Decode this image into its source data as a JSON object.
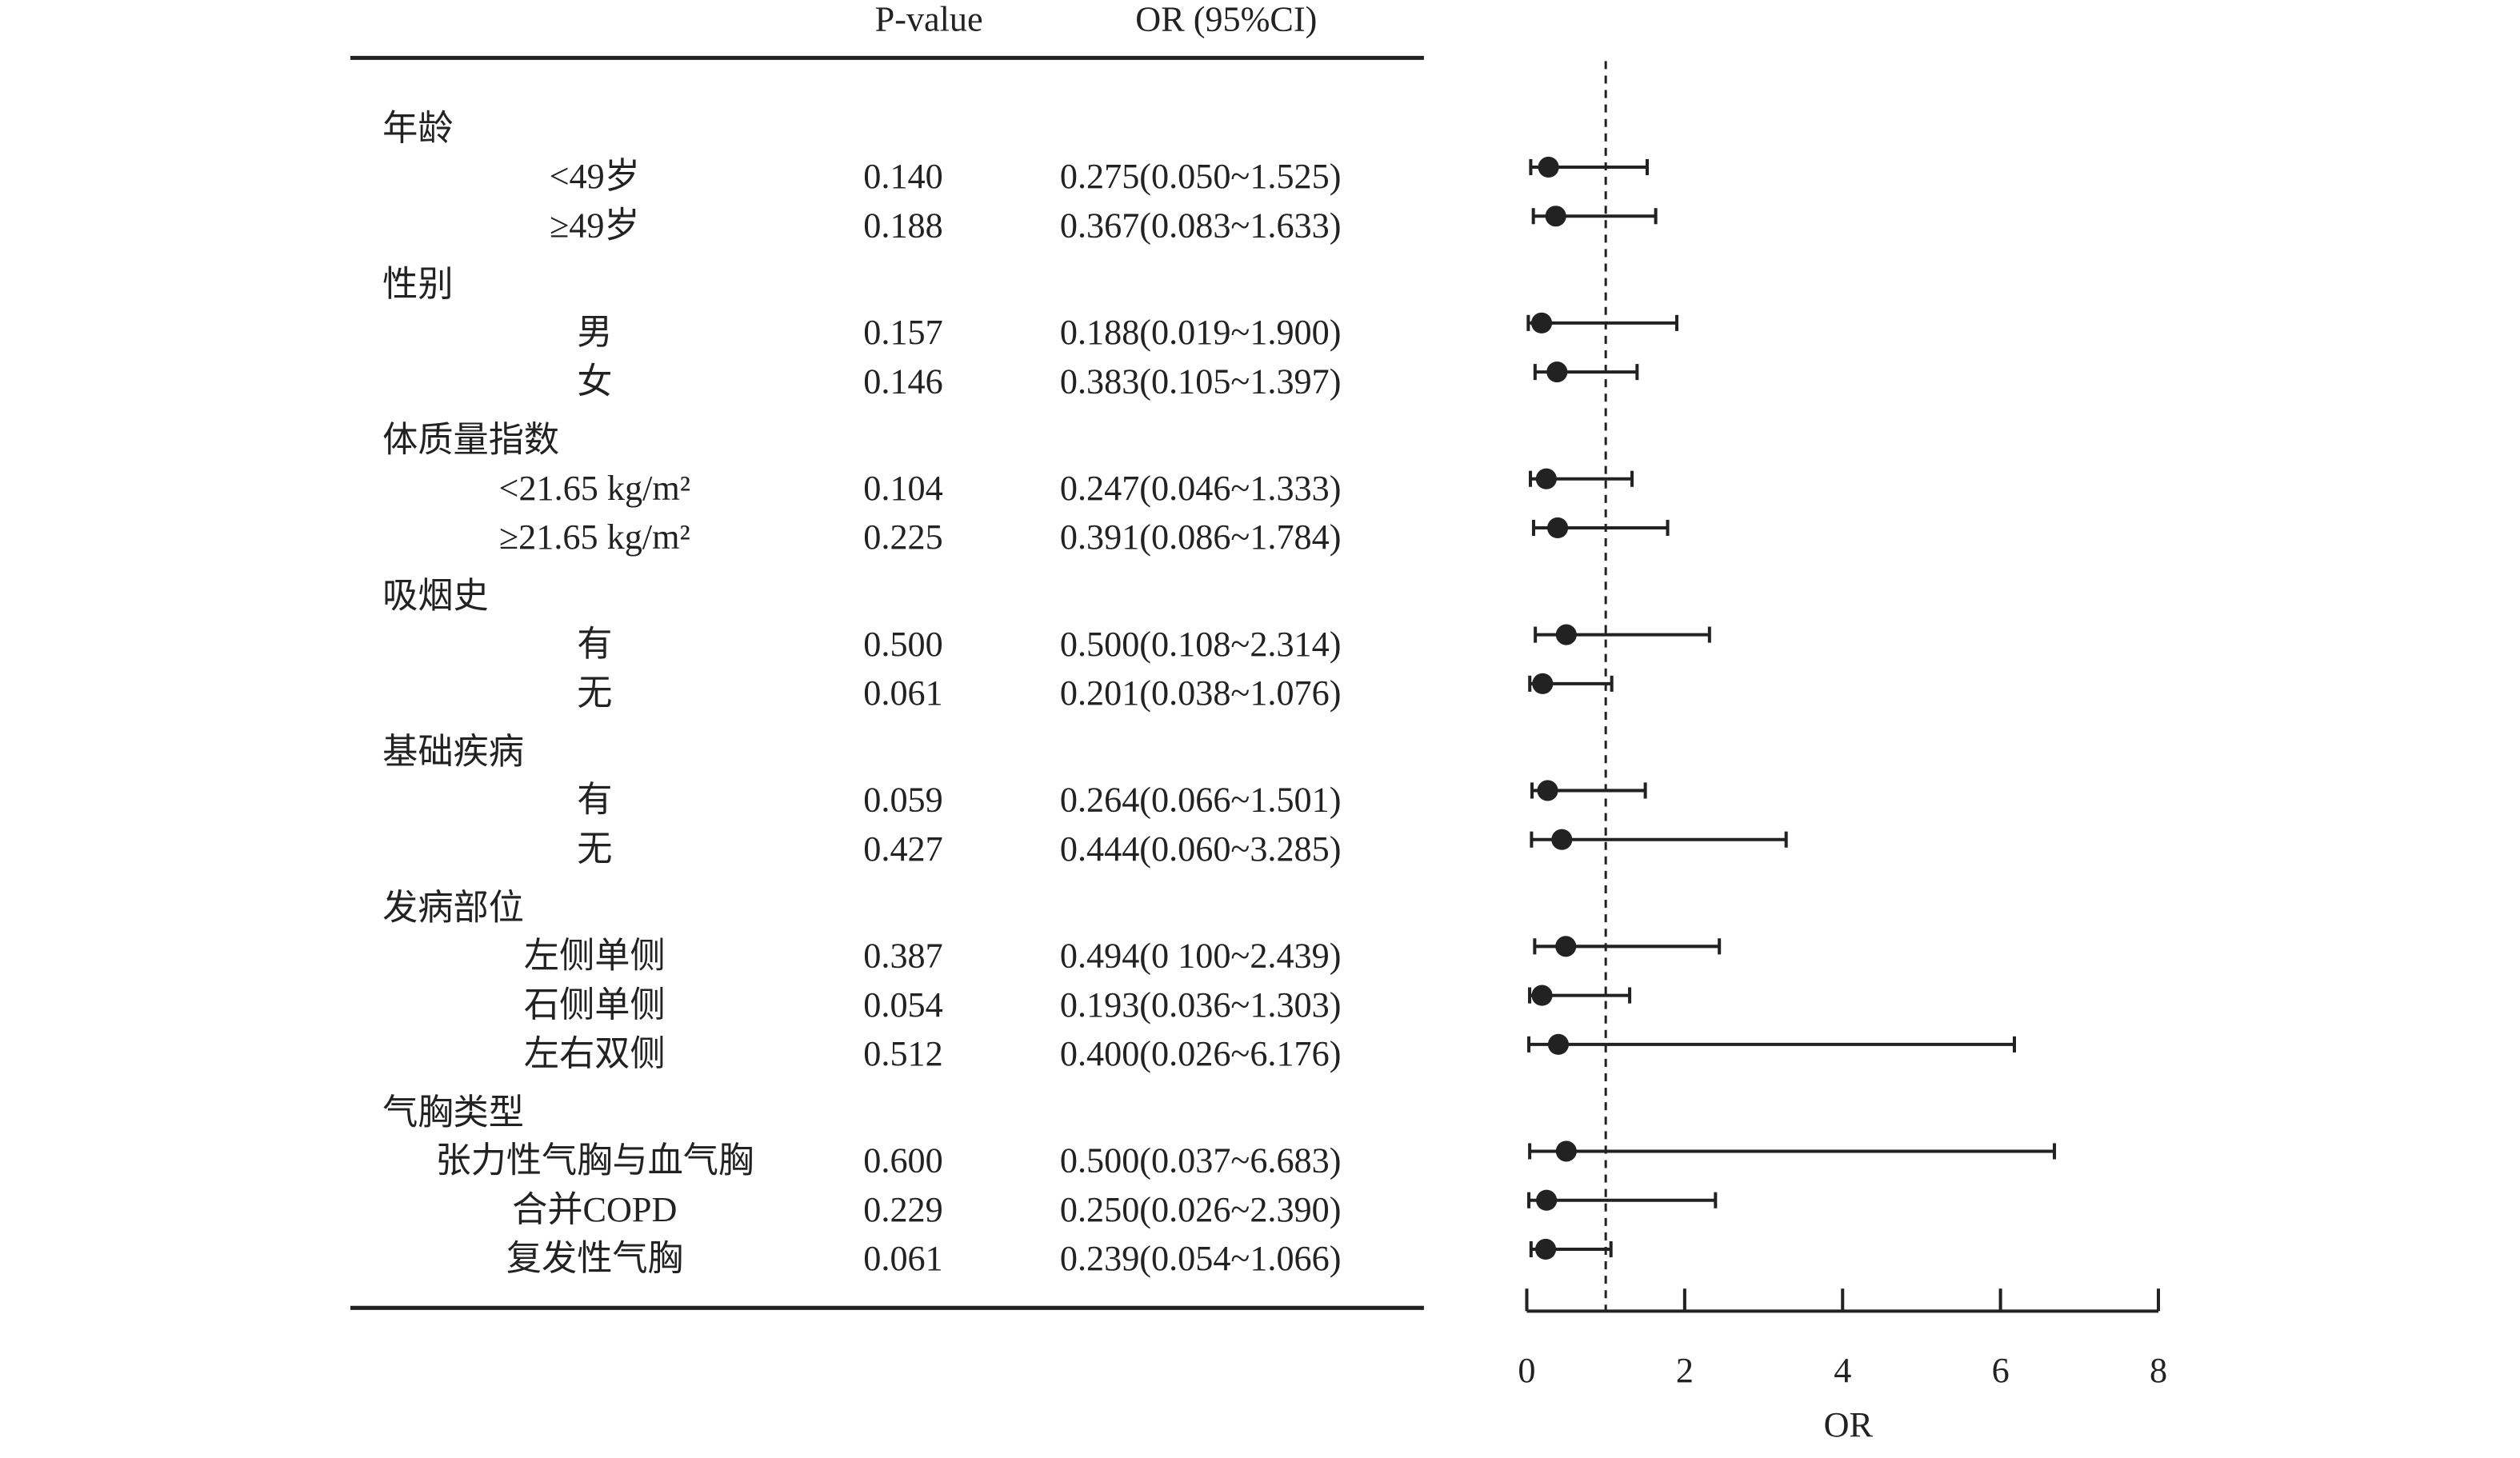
{
  "chart_data": {
    "type": "forest",
    "columns": [
      "P-value",
      "OR (95%CI)"
    ],
    "groups": [
      {
        "label": "年龄",
        "rows": [
          {
            "label": "<49岁",
            "p_value": "0.140",
            "ci_text": "0.275(0.050~1.525)",
            "or": 0.275,
            "lower": 0.05,
            "upper": 1.525
          },
          {
            "label": "≥49岁",
            "p_value": "0.188",
            "ci_text": "0.367(0.083~1.633)",
            "or": 0.367,
            "lower": 0.083,
            "upper": 1.633
          }
        ]
      },
      {
        "label": "性别",
        "rows": [
          {
            "label": "男",
            "p_value": "0.157",
            "ci_text": "0.188(0.019~1.900)",
            "or": 0.188,
            "lower": 0.019,
            "upper": 1.9
          },
          {
            "label": "女",
            "p_value": "0.146",
            "ci_text": "0.383(0.105~1.397)",
            "or": 0.383,
            "lower": 0.105,
            "upper": 1.397
          }
        ]
      },
      {
        "label": "体质量指数",
        "rows": [
          {
            "label": "<21.65 kg/m²",
            "p_value": "0.104",
            "ci_text": "0.247(0.046~1.333)",
            "or": 0.247,
            "lower": 0.046,
            "upper": 1.333
          },
          {
            "label": "≥21.65 kg/m²",
            "p_value": "0.225",
            "ci_text": "0.391(0.086~1.784)",
            "or": 0.391,
            "lower": 0.086,
            "upper": 1.784
          }
        ]
      },
      {
        "label": "吸烟史",
        "rows": [
          {
            "label": "有",
            "p_value": "0.500",
            "ci_text": "0.500(0.108~2.314)",
            "or": 0.5,
            "lower": 0.108,
            "upper": 2.314
          },
          {
            "label": "无",
            "p_value": "0.061",
            "ci_text": "0.201(0.038~1.076)",
            "or": 0.201,
            "lower": 0.038,
            "upper": 1.076
          }
        ]
      },
      {
        "label": "基础疾病",
        "rows": [
          {
            "label": "有",
            "p_value": "0.059",
            "ci_text": "0.264(0.066~1.501)",
            "or": 0.264,
            "lower": 0.066,
            "upper": 1.501
          },
          {
            "label": "无",
            "p_value": "0.427",
            "ci_text": "0.444(0.060~3.285)",
            "or": 0.444,
            "lower": 0.06,
            "upper": 3.285
          }
        ]
      },
      {
        "label": "发病部位",
        "rows": [
          {
            "label": "左侧单侧",
            "p_value": "0.387",
            "ci_text": "0.494(0 100~2.439)",
            "or": 0.494,
            "lower": 0.1,
            "upper": 2.439
          },
          {
            "label": "石侧单侧",
            "p_value": "0.054",
            "ci_text": "0.193(0.036~1.303)",
            "or": 0.193,
            "lower": 0.036,
            "upper": 1.303
          },
          {
            "label": "左右双侧",
            "p_value": "0.512",
            "ci_text": "0.400(0.026~6.176)",
            "or": 0.4,
            "lower": 0.026,
            "upper": 6.176
          }
        ]
      },
      {
        "label": "气胸类型",
        "rows": [
          {
            "label": "张力性气胸与血气胸",
            "p_value": "0.600",
            "ci_text": "0.500(0.037~6.683)",
            "or": 0.5,
            "lower": 0.037,
            "upper": 6.683
          },
          {
            "label": "合并COPD",
            "p_value": "0.229",
            "ci_text": "0.250(0.026~2.390)",
            "or": 0.25,
            "lower": 0.026,
            "upper": 2.39
          },
          {
            "label": "复发性气胸",
            "p_value": "0.061",
            "ci_text": "0.239(0.054~1.066)",
            "or": 0.239,
            "lower": 0.054,
            "upper": 1.066
          }
        ]
      }
    ],
    "reference_line": 1,
    "xlim": [
      0,
      8
    ],
    "xticks": [
      0,
      2,
      4,
      6,
      8
    ],
    "xlabel": "OR",
    "color": "#222222"
  }
}
